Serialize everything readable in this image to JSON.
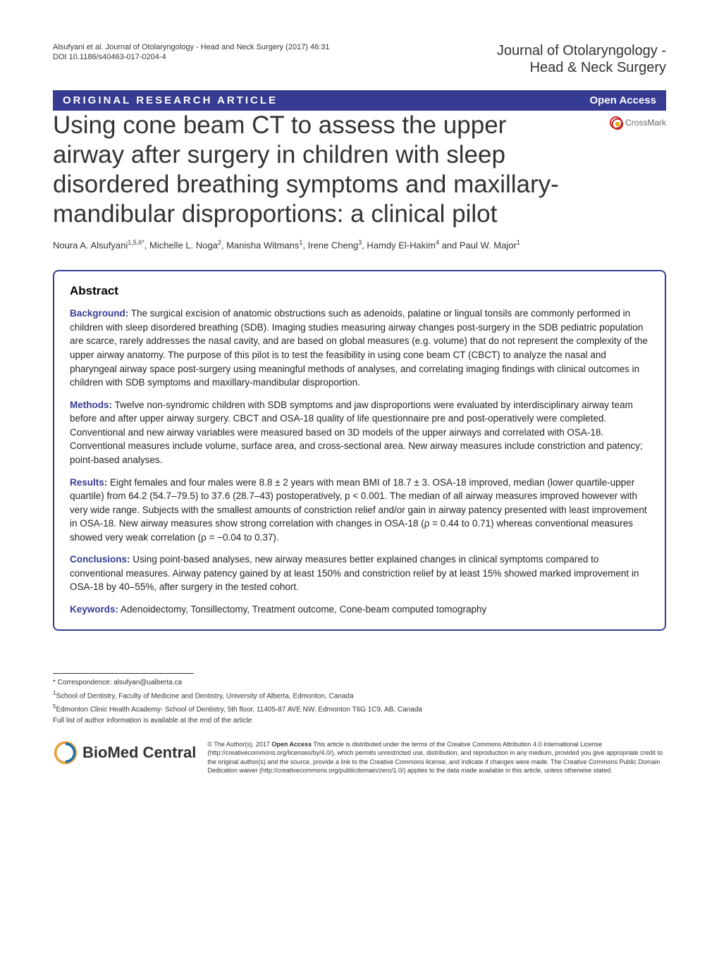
{
  "header": {
    "citation": "Alsufyani et al. Journal of Otolaryngology - Head and Neck Surgery  (2017) 46:31",
    "doi": "DOI 10.1186/s40463-017-0204-4",
    "journal_name_line1": "Journal of Otolaryngology -",
    "journal_name_line2": "Head & Neck Surgery"
  },
  "article_type_bar": {
    "type": "ORIGINAL RESEARCH ARTICLE",
    "access": "Open Access"
  },
  "crossmark": "CrossMark",
  "title": "Using cone beam CT to assess the upper airway after surgery in children with sleep disordered breathing symptoms and maxillary-mandibular disproportions: a clinical pilot",
  "authors_html": "Noura A. Alsufyani<sup>1,5,6*</sup>, Michelle L. Noga<sup>2</sup>, Manisha Witmans<sup>1</sup>, Irene Cheng<sup>3</sup>, Hamdy El-Hakim<sup>4</sup> and Paul W. Major<sup>1</sup>",
  "abstract": {
    "heading": "Abstract",
    "background": {
      "label": "Background:",
      "text": " The surgical excision of anatomic obstructions such as adenoids, palatine or lingual tonsils are commonly performed in children with sleep disordered breathing (SDB). Imaging studies measuring airway changes post-surgery in the SDB pediatric population are scarce, rarely addresses the nasal cavity, and are based on global measures (e.g. volume) that do not represent the complexity of the upper airway anatomy. The purpose of this pilot is to test the feasibility in using cone beam CT (CBCT) to analyze the nasal and pharyngeal airway space post-surgery using meaningful methods of analyses, and correlating imaging findings with clinical outcomes in children with SDB symptoms and maxillary-mandibular disproportion."
    },
    "methods": {
      "label": "Methods:",
      "text": " Twelve non-syndromic children with SDB symptoms and jaw disproportions were evaluated by interdisciplinary airway team before and after upper airway surgery. CBCT and OSA-18 quality of life questionnaire pre and post-operatively were completed. Conventional and new airway variables were measured based on 3D models of the upper airways and correlated with OSA-18. Conventional measures include volume, surface area, and cross-sectional area. New airway measures include constriction and patency; point-based analyses."
    },
    "results": {
      "label": "Results:",
      "text": " Eight females and four males were 8.8 ± 2 years with mean BMI of 18.7 ± 3. OSA-18 improved, median (lower quartile-upper quartile) from 64.2 (54.7–79.5) to 37.6 (28.7–43) postoperatively, p < 0.001. The median of all airway measures improved however with very wide range. Subjects with the smallest amounts of constriction relief and/or gain in airway patency presented with least improvement in OSA-18. New airway measures show strong correlation with changes in OSA-18 (ρ = 0.44 to 0.71) whereas conventional measures showed very weak correlation (ρ = −0.04 to 0.37)."
    },
    "conclusions": {
      "label": "Conclusions:",
      "text": " Using point-based analyses, new airway measures better explained changes in clinical symptoms compared to conventional measures. Airway patency gained by at least 150% and constriction relief by at least 15% showed marked improvement in OSA-18 by 40–55%, after surgery in the tested cohort."
    },
    "keywords": {
      "label": "Keywords:",
      "text": " Adenoidectomy, Tonsillectomy, Treatment outcome, Cone-beam computed tomography"
    }
  },
  "footer": {
    "correspondence": "* Correspondence: alsufyan@ualberta.ca",
    "affiliation1": "School of Dentistry, Faculty of Medicine and Dentistry, University of Alberta, Edmonton, Canada",
    "affiliation5": "Edmonton Clinic Health Academy- School of Dentistry, 5th floor, 11405-87 AVE NW, Edmonton T6G 1C9, AB, Canada",
    "author_list_note": "Full list of author information is available at the end of the article",
    "biomed_logo": "BioMed Central",
    "license_label": "Open Access",
    "license_text_prefix": "© The Author(s). 2017 ",
    "license_text_body": " This article is distributed under the terms of the Creative Commons Attribution 4.0 International License (http://creativecommons.org/licenses/by/4.0/), which permits unrestricted use, distribution, and reproduction in any medium, provided you give appropriate credit to the original author(s) and the source, provide a link to the Creative Commons license, and indicate if changes were made. The Creative Commons Public Domain Dedication waiver (http://creativecommons.org/publicdomain/zero/1.0/) applies to the data made available in this article, unless otherwise stated."
  },
  "colors": {
    "brand": "#373c93",
    "text": "#333333",
    "background": "#ffffff"
  }
}
